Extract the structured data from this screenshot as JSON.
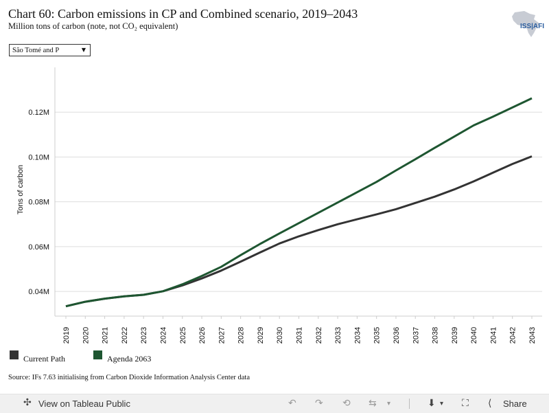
{
  "header": {
    "title": "Chart 60: Carbon emissions in CP and Combined scenario, 2019–2043",
    "subtitle": "Million tons of carbon (note, not CO₂ equivalent)",
    "logo_text": "ISS|AFI"
  },
  "filter": {
    "selected": "São Tomé and P"
  },
  "chart_data": {
    "type": "line",
    "title": "Chart 60: Carbon emissions in CP and Combined scenario, 2019–2043",
    "subtitle": "Million tons of carbon (note, not CO₂ equivalent)",
    "xlabel": "",
    "ylabel": "Tons of carbon",
    "x": [
      "2019",
      "2020",
      "2021",
      "2022",
      "2023",
      "2024",
      "2025",
      "2026",
      "2027",
      "2028",
      "2029",
      "2030",
      "2031",
      "2032",
      "2033",
      "2034",
      "2035",
      "2036",
      "2037",
      "2038",
      "2039",
      "2040",
      "2041",
      "2042",
      "2043"
    ],
    "ylim": [
      0.029,
      0.14
    ],
    "yticks": [
      0.04,
      0.06,
      0.08,
      0.1,
      0.12
    ],
    "ytick_labels": [
      "0.04M",
      "0.06M",
      "0.08M",
      "0.10M",
      "0.12M"
    ],
    "grid": true,
    "legend_position": "bottom-left",
    "series": [
      {
        "name": "Current Path",
        "color": "#333333",
        "values": [
          0.0334,
          0.0354,
          0.0368,
          0.0378,
          0.0385,
          0.0401,
          0.0427,
          0.0458,
          0.0493,
          0.0533,
          0.0574,
          0.0614,
          0.0646,
          0.0674,
          0.07,
          0.0722,
          0.0744,
          0.0767,
          0.0795,
          0.0823,
          0.0855,
          0.0891,
          0.093,
          0.0969,
          0.1003
        ]
      },
      {
        "name": "Agenda 2063",
        "color": "#1e5631",
        "values": [
          0.0334,
          0.0354,
          0.0368,
          0.0378,
          0.0385,
          0.0401,
          0.0432,
          0.0469,
          0.051,
          0.0562,
          0.0612,
          0.0659,
          0.0705,
          0.0751,
          0.0797,
          0.0843,
          0.0889,
          0.094,
          0.099,
          0.1041,
          0.1091,
          0.1141,
          0.118,
          0.1221,
          0.1262
        ]
      }
    ]
  },
  "source": "Source: IFs 7.63 initialising from Carbon Dioxide Information Analysis Center data",
  "toolbar": {
    "view_label": "View on Tableau Public",
    "share_label": "Share",
    "icons": [
      "tableau-icon",
      "undo-icon",
      "redo-icon",
      "revert-icon",
      "refresh-icon",
      "download-icon",
      "fullscreen-icon",
      "share-icon"
    ]
  }
}
